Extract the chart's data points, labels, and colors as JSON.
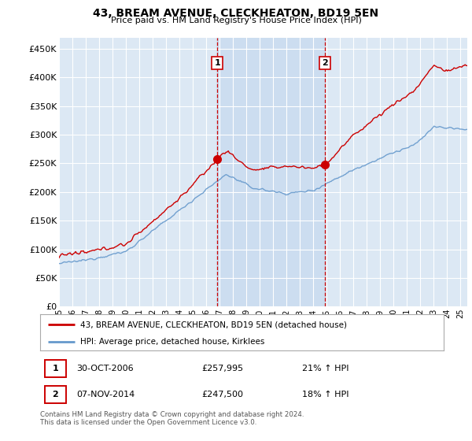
{
  "title": "43, BREAM AVENUE, CLECKHEATON, BD19 5EN",
  "subtitle": "Price paid vs. HM Land Registry's House Price Index (HPI)",
  "ylabel_ticks": [
    "£0",
    "£50K",
    "£100K",
    "£150K",
    "£200K",
    "£250K",
    "£300K",
    "£350K",
    "£400K",
    "£450K"
  ],
  "ytick_values": [
    0,
    50000,
    100000,
    150000,
    200000,
    250000,
    300000,
    350000,
    400000,
    450000
  ],
  "ylim": [
    0,
    470000
  ],
  "xlim_start": 1995.0,
  "xlim_end": 2025.5,
  "legend_line1": "43, BREAM AVENUE, CLECKHEATON, BD19 5EN (detached house)",
  "legend_line2": "HPI: Average price, detached house, Kirklees",
  "sale1_label": "1",
  "sale1_date": "30-OCT-2006",
  "sale1_price": "£257,995",
  "sale1_hpi": "21% ↑ HPI",
  "sale2_label": "2",
  "sale2_date": "07-NOV-2014",
  "sale2_price": "£247,500",
  "sale2_hpi": "18% ↑ HPI",
  "footer": "Contains HM Land Registry data © Crown copyright and database right 2024.\nThis data is licensed under the Open Government Licence v3.0.",
  "sale1_year": 2006.83,
  "sale2_year": 2014.85,
  "sale1_value": 257995,
  "sale2_value": 247500,
  "red_color": "#cc0000",
  "blue_color": "#6699cc",
  "vline_color": "#cc0000",
  "grid_color": "#cccccc",
  "bg_color": "#ffffff",
  "plot_bg_color": "#dce8f4",
  "span_color": "#ccddf0"
}
